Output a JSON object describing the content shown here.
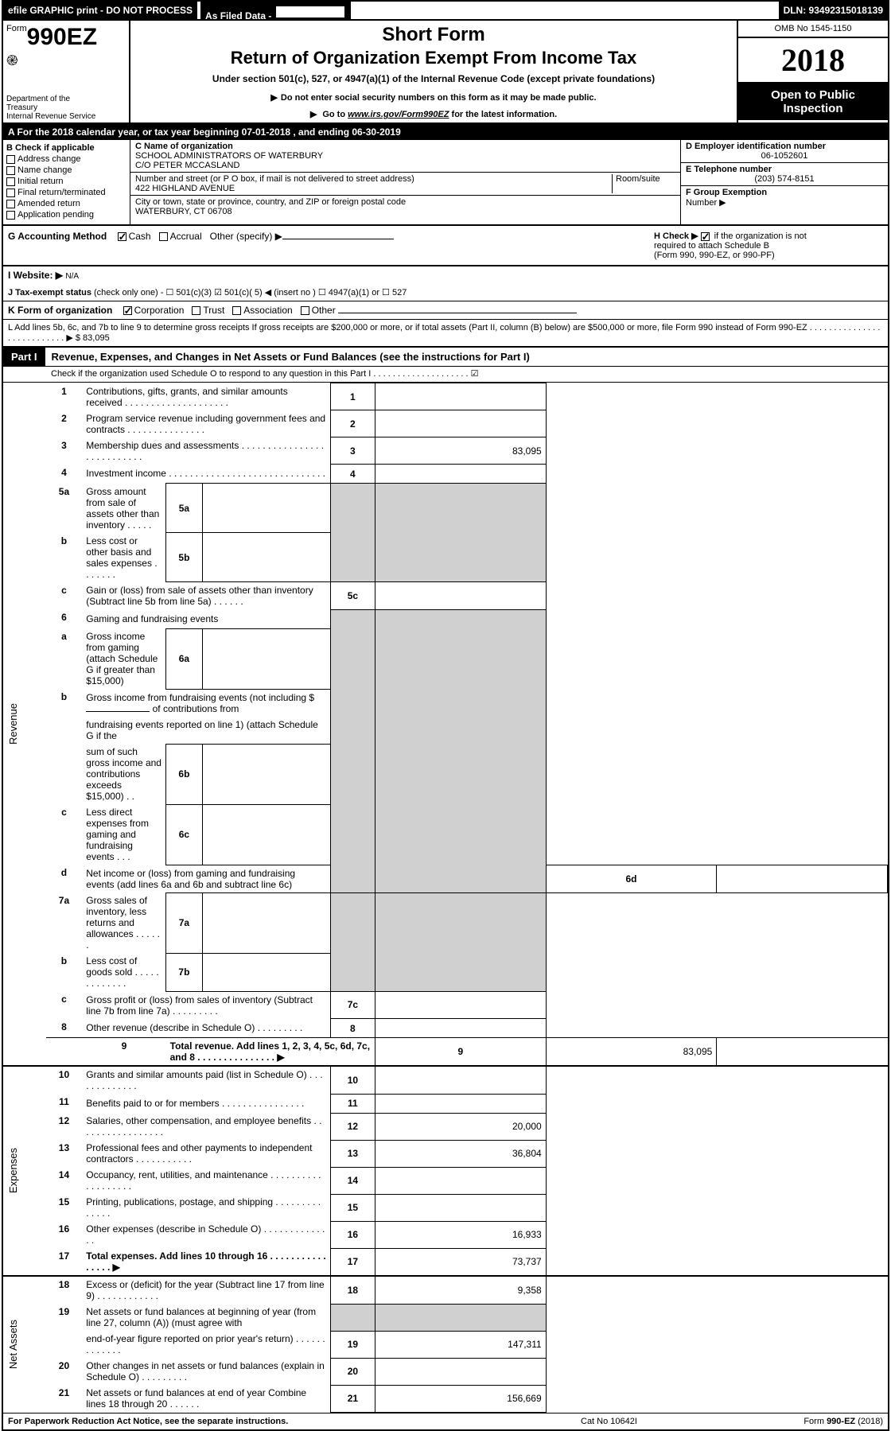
{
  "topbar": {
    "left": "efile GRAPHIC print - DO NOT PROCESS",
    "filed": "As Filed Data -",
    "dln": "DLN: 93492315018139"
  },
  "header": {
    "form_prefix": "Form",
    "form_number": "990EZ",
    "short_form": "Short Form",
    "title": "Return of Organization Exempt From Income Tax",
    "subtitle": "Under section 501(c), 527, or 4947(a)(1) of the Internal Revenue Code (except private foundations)",
    "warn": "Do not enter social security numbers on this form as it may be made public.",
    "goto_prefix": "Go to ",
    "goto_link": "www.irs.gov/Form990EZ",
    "goto_suffix": " for the latest information.",
    "dept1": "Department of the",
    "dept2": "Treasury",
    "dept3": "Internal Revenue Service",
    "omb": "OMB No 1545-1150",
    "year": "2018",
    "open_to": "Open to Public Inspection"
  },
  "lineA": "A  For the 2018 calendar year, or tax year beginning 07-01-2018                       , and ending 06-30-2019",
  "b": {
    "heading": "B  Check if applicable",
    "items": [
      "Address change",
      "Name change",
      "Initial return",
      "Final return/terminated",
      "Amended return",
      "Application pending"
    ]
  },
  "c": {
    "name_label": "C Name of organization",
    "name1": "SCHOOL ADMINISTRATORS OF WATERBURY",
    "name2": "C/O PETER MCCASLAND",
    "addr_label": "Number and street (or P O box, if mail is not delivered to street address)",
    "room_label": "Room/suite",
    "addr": "422 HIGHLAND AVENUE",
    "city_label": "City or town, state or province, country, and ZIP or foreign postal code",
    "city": "WATERBURY, CT  06708"
  },
  "d": {
    "label": "D Employer identification number",
    "value": "06-1052601"
  },
  "e": {
    "label": "E Telephone number",
    "value": "(203) 574-8151"
  },
  "f": {
    "label": "F Group Exemption",
    "label2": "Number  ▶"
  },
  "g": {
    "label": "G Accounting Method",
    "cash": "Cash",
    "accrual": "Accrual",
    "other": "Other (specify) ▶"
  },
  "h": {
    "line1_prefix": "H   Check ▶ ",
    "line1_suffix": " if the organization is not",
    "line2": "required to attach Schedule B",
    "line3": "(Form 990, 990-EZ, or 990-PF)"
  },
  "i": {
    "label": "I Website: ▶",
    "value": "N/A"
  },
  "j": {
    "label": "J Tax-exempt status",
    "text": "(check only one) -  ☐ 501(c)(3)  ☑ 501(c)( 5) ◀ (insert no )  ☐ 4947(a)(1) or  ☐ 527"
  },
  "k": {
    "label": "K Form of organization",
    "corp": "Corporation",
    "trust": "Trust",
    "assoc": "Association",
    "other": "Other"
  },
  "l": {
    "text": "L Add lines 5b, 6c, and 7b to line 9 to determine gross receipts  If gross receipts are $200,000 or more, or if total assets (Part II, column (B) below) are $500,000 or more, file Form 990 instead of Form 990-EZ  .  .  .  .  .  .  .  .  .  .  .  .  .  .  .  .  .  .  .  .  .  .  .  .  .  .  .  ▶ $ 83,095"
  },
  "part1": {
    "label": "Part I",
    "title": "Revenue, Expenses, and Changes in Net Assets or Fund Balances (see the instructions for Part I)",
    "subtitle": "Check if the organization used Schedule O to respond to any question in this Part I  .   .   .   .   .   .   .   .   .   .   .   .   .   .   .   .   .   .   .   .  ☑"
  },
  "vlabels": {
    "revenue": "Revenue",
    "expenses": "Expenses",
    "netassets": "Net Assets"
  },
  "lines": {
    "l1": {
      "n": "1",
      "d": "Contributions, gifts, grants, and similar amounts received  .  .  .  .  .  .  .  .  .  .  .  .  .  .  .  .  .  .  .  .",
      "rn": "1",
      "amt": ""
    },
    "l2": {
      "n": "2",
      "d": "Program service revenue including government fees and contracts  .  .  .  .  .  .  .  .  .  .  .  .  .  .  .",
      "rn": "2",
      "amt": ""
    },
    "l3": {
      "n": "3",
      "d": "Membership dues and assessments  .  .  .  .  .  .  .  .  .  .  .  .  .  .  .  .  .  .  .  .  .  .  .  .  .  .  .",
      "rn": "3",
      "amt": "83,095"
    },
    "l4": {
      "n": "4",
      "d": "Investment income  .  .  .  .  .  .  .  .  .  .  .  .  .  .  .  .  .  .  .  .  .  .  .  .  .  .  .  .  .  .",
      "rn": "4",
      "amt": ""
    },
    "l5a": {
      "n": "5a",
      "d": "Gross amount from sale of assets other than inventory  .  .  .  .  .",
      "sub": "5a",
      "sv": ""
    },
    "l5b": {
      "n": "b",
      "d": "Less  cost or other basis and sales expenses  .  .  .  .  .  .  .",
      "sub": "5b",
      "sv": ""
    },
    "l5c": {
      "n": "c",
      "d": "Gain or (loss) from sale of assets other than inventory (Subtract line 5b from line 5a)  .  .  .  .  .  .",
      "rn": "5c",
      "amt": ""
    },
    "l6": {
      "n": "6",
      "d": "Gaming and fundraising events"
    },
    "l6a": {
      "n": "a",
      "d": "Gross income from gaming (attach Schedule G if greater than $15,000)",
      "sub": "6a",
      "sv": ""
    },
    "l6b": {
      "n": "b",
      "d1": "Gross income from fundraising events (not including $",
      "d2": "of contributions from",
      "d3": "fundraising events reported on line 1) (attach Schedule G if the",
      "d4": "sum of such gross income and contributions exceeds $15,000)     .     .",
      "sub": "6b",
      "sv": ""
    },
    "l6c": {
      "n": "c",
      "d": "Less  direct expenses from gaming and fundraising events       .     .     .",
      "sub": "6c",
      "sv": ""
    },
    "l6d": {
      "n": "d",
      "d": "Net income or (loss) from gaming and fundraising events (add lines 6a and 6b and subtract line 6c)",
      "rn": "6d",
      "amt": ""
    },
    "l7a": {
      "n": "7a",
      "d": "Gross sales of inventory, less returns and allowances  .  .  .  .  .  .",
      "sub": "7a",
      "sv": ""
    },
    "l7b": {
      "n": "b",
      "d": "Less  cost of goods sold               .    .    .    .    .    .    .    .    .    .    .    .    .",
      "sub": "7b",
      "sv": ""
    },
    "l7c": {
      "n": "c",
      "d": "Gross profit or (loss) from sales of inventory (Subtract line 7b from line 7a)  .  .  .  .  .  .  .  .  .",
      "rn": "7c",
      "amt": ""
    },
    "l8": {
      "n": "8",
      "d": "Other revenue (describe in Schedule O)                                      .    .    .    .    .    .    .    .    .",
      "rn": "8",
      "amt": ""
    },
    "l9": {
      "n": "9",
      "d": "Total revenue. Add lines 1, 2, 3, 4, 5c, 6d, 7c, and 8  .   .   .   .   .   .   .   .   .   .   .   .   .   .   .   ▶",
      "rn": "9",
      "amt": "83,095"
    },
    "l10": {
      "n": "10",
      "d": "Grants and similar amounts paid (list in Schedule O)             .    .    .    .    .    .    .    .    .    .    .    .    .",
      "rn": "10",
      "amt": ""
    },
    "l11": {
      "n": "11",
      "d": "Benefits paid to or for members                           .    .    .    .    .    .    .    .    .    .    .    .    .    .    .    .",
      "rn": "11",
      "amt": ""
    },
    "l12": {
      "n": "12",
      "d": "Salaries, other compensation, and employee benefits  .  .  .  .  .  .  .  .  .  .  .  .  .  .  .  .  .",
      "rn": "12",
      "amt": "20,000"
    },
    "l13": {
      "n": "13",
      "d": "Professional fees and other payments to independent contractors   .   .   .   .   .   .   .   .   .   .   .",
      "rn": "13",
      "amt": "36,804"
    },
    "l14": {
      "n": "14",
      "d": "Occupancy, rent, utilities, and maintenance  .   .   .   .   .   .   .   .   .   .   .   .   .   .   .   .   .   .   .",
      "rn": "14",
      "amt": ""
    },
    "l15": {
      "n": "15",
      "d": "Printing, publications, postage, and shipping                   .    .    .    .    .    .    .    .    .    .    .    .    .    .",
      "rn": "15",
      "amt": ""
    },
    "l16": {
      "n": "16",
      "d": "Other expenses (describe in Schedule O)                         .    .    .    .    .    .    .    .    .    .    .    .    .    .",
      "rn": "16",
      "amt": "16,933"
    },
    "l17": {
      "n": "17",
      "d": "Total expenses. Add lines 10 through 16            .    .    .    .    .    .    .    .    .    .    .    .    .    .    .    .    ▶",
      "rn": "17",
      "amt": "73,737"
    },
    "l18": {
      "n": "18",
      "d": "Excess or (deficit) for the year (Subtract line 17 from line 9)         .    .    .    .    .    .    .    .    .    .    .    .",
      "rn": "18",
      "amt": "9,358"
    },
    "l19": {
      "n": "19",
      "d1": "Net assets or fund balances at beginning of year (from line 27, column (A)) (must agree with",
      "d2": "end-of-year figure reported on prior year's return)                .    .    .    .    .    .    .    .    .    .    .    .    .",
      "rn": "19",
      "amt": "147,311"
    },
    "l20": {
      "n": "20",
      "d": "Other changes in net assets or fund balances (explain in Schedule O)       .    .    .    .    .    .    .    .    .",
      "rn": "20",
      "amt": ""
    },
    "l21": {
      "n": "21",
      "d": "Net assets or fund balances at end of year  Combine lines 18 through 20          .    .    .    .    .    .",
      "rn": "21",
      "amt": "156,669"
    }
  },
  "footer": {
    "left": "For Paperwork Reduction Act Notice, see the separate instructions.",
    "mid": "Cat  No  10642I",
    "right": "Form 990-EZ (2018)"
  },
  "colors": {
    "black": "#000000",
    "white": "#ffffff",
    "shade": "#d0d0d0"
  }
}
